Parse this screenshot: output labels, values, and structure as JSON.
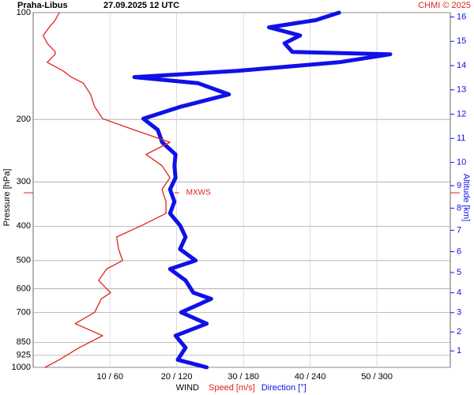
{
  "chart_data": {
    "type": "line",
    "title": "Praha-Libus",
    "subtitle": "27.09.2025 12 UTC",
    "credit": "CHMI © 2025",
    "xlabel": "WIND",
    "ylabel": "Pressure [hPa]",
    "y2label": "Altitude [km]",
    "y_log": true,
    "grid": true,
    "xlim": [
      -1.5,
      61
    ],
    "x2lim": [
      -9,
      366
    ],
    "xticks": [
      {
        "value": 10,
        "label": "10 / 60"
      },
      {
        "value": 20,
        "label": "20 / 120"
      },
      {
        "value": 30,
        "label": "30 / 180"
      },
      {
        "value": 40,
        "label": "40 / 240"
      },
      {
        "value": 50,
        "label": "50 / 300"
      }
    ],
    "ylim": [
      1000,
      100
    ],
    "yticks": [
      100,
      200,
      300,
      400,
      500,
      600,
      700,
      850,
      925,
      1000
    ],
    "y2ticks": [
      1,
      2,
      3,
      4,
      5,
      6,
      7,
      8,
      9,
      10,
      11,
      12,
      13,
      14,
      15,
      16
    ],
    "y": [
      1000,
      952,
      880,
      814,
      753,
      700,
      641,
      616,
      569,
      528,
      500,
      464,
      429,
      398,
      368,
      341,
      315,
      292,
      270,
      251,
      232,
      214,
      199,
      184,
      170,
      158,
      152,
      146,
      138,
      131,
      129,
      122,
      116,
      110,
      105,
      100
    ],
    "series": [
      {
        "name": "Speed [m/s]",
        "color": "#e0231c",
        "axis": "x",
        "values": [
          0.3,
          2.4,
          5.4,
          8.9,
          4.8,
          7.7,
          8.7,
          10.1,
          8.3,
          9.5,
          11.9,
          11.3,
          11,
          14.8,
          18.4,
          18.4,
          17.8,
          19,
          17.8,
          15.4,
          19,
          13.6,
          8.9,
          7.7,
          7.1,
          6,
          4.2,
          3,
          0.6,
          1.8,
          1.8,
          0.6,
          0,
          0.9,
          1.8,
          2.4
        ]
      },
      {
        "name": "Direction [°]",
        "color": "#1010e8",
        "axis": "x2",
        "values": [
          147,
          121,
          128,
          119,
          147,
          124,
          151,
          135,
          128,
          114,
          137,
          123,
          128,
          123,
          114,
          118,
          114,
          119,
          118,
          119,
          107,
          103,
          90,
          124,
          167,
          139,
          82,
          174,
          266,
          312,
          224,
          217,
          231,
          203,
          245,
          266
        ]
      }
    ],
    "annotation": {
      "text": "MXWS",
      "x": 20,
      "y": 322
    }
  }
}
